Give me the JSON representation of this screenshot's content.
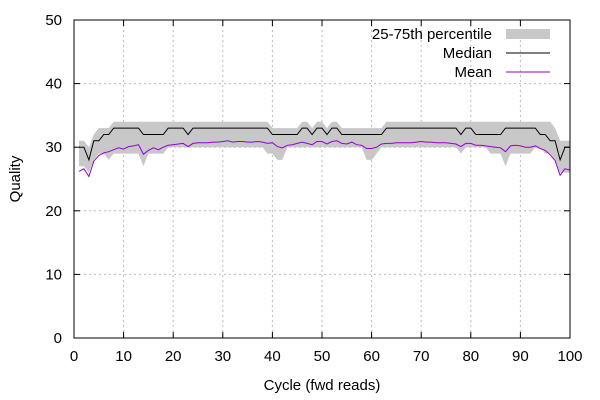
{
  "chart_data": {
    "type": "line",
    "xlabel": "Cycle (fwd reads)",
    "ylabel": "Quality",
    "xlim": [
      0,
      100
    ],
    "ylim": [
      0,
      50
    ],
    "xticks": [
      0,
      10,
      20,
      30,
      40,
      50,
      60,
      70,
      80,
      90,
      100
    ],
    "yticks": [
      0,
      10,
      20,
      30,
      40,
      50
    ],
    "grid": true,
    "legend_position": "top-right",
    "legend": {
      "band": "25-75th percentile",
      "median": "Median",
      "mean": "Mean"
    },
    "colors": {
      "band": "#c8c8c8",
      "median": "#000000",
      "mean": "#9400d3",
      "grid": "#bbbbbb"
    },
    "series": {
      "x": [
        1,
        2,
        3,
        4,
        5,
        6,
        7,
        8,
        9,
        10,
        11,
        12,
        13,
        14,
        15,
        16,
        17,
        18,
        19,
        20,
        21,
        22,
        23,
        24,
        25,
        26,
        27,
        28,
        29,
        30,
        31,
        32,
        33,
        34,
        35,
        36,
        37,
        38,
        39,
        40,
        41,
        42,
        43,
        44,
        45,
        46,
        47,
        48,
        49,
        50,
        51,
        52,
        53,
        54,
        55,
        56,
        57,
        58,
        59,
        60,
        61,
        62,
        63,
        64,
        65,
        66,
        67,
        68,
        69,
        70,
        71,
        72,
        73,
        74,
        75,
        76,
        77,
        78,
        79,
        80,
        81,
        82,
        83,
        84,
        85,
        86,
        87,
        88,
        89,
        90,
        91,
        92,
        93,
        94,
        95,
        96,
        97,
        98,
        99,
        100
      ],
      "median": [
        30,
        30,
        28,
        31,
        31,
        32,
        32,
        33,
        33,
        33,
        33,
        33,
        33,
        32,
        32,
        32,
        32,
        32,
        33,
        33,
        33,
        33,
        32,
        33,
        33,
        33,
        33,
        33,
        33,
        33,
        33,
        33,
        33,
        33,
        33,
        33,
        33,
        33,
        33,
        32,
        32,
        32,
        32,
        32,
        32,
        33,
        33,
        32,
        33,
        33,
        32,
        33,
        33,
        32,
        32,
        32,
        32,
        32,
        32,
        32,
        32,
        32,
        33,
        33,
        33,
        33,
        33,
        33,
        33,
        33,
        33,
        33,
        33,
        33,
        33,
        33,
        33,
        32,
        33,
        33,
        32,
        32,
        32,
        32,
        32,
        32,
        33,
        33,
        33,
        33,
        33,
        33,
        33,
        32,
        32,
        31,
        31,
        28,
        30,
        30
      ],
      "q1": [
        27,
        27,
        26,
        28,
        29,
        29,
        28,
        29,
        29,
        29,
        29,
        29,
        29,
        27,
        29,
        29,
        29,
        29,
        30,
        30,
        30,
        30,
        30,
        30,
        30,
        30,
        30,
        30,
        30,
        30,
        30,
        30,
        30,
        30,
        30,
        30,
        30,
        30,
        29,
        29,
        28,
        28,
        30,
        30,
        30,
        30,
        30,
        30,
        30,
        30,
        30,
        30,
        30,
        30,
        30,
        30,
        30,
        30,
        28,
        28,
        29,
        30,
        30,
        30,
        30,
        30,
        30,
        30,
        30,
        30,
        30,
        30,
        30,
        30,
        30,
        30,
        30,
        29,
        30,
        30,
        30,
        30,
        30,
        29,
        29,
        29,
        27,
        29,
        29,
        29,
        29,
        29,
        30,
        30,
        29,
        29,
        28,
        26,
        26,
        26
      ],
      "q3": [
        31,
        31,
        30,
        32,
        33,
        33,
        33,
        34,
        34,
        34,
        34,
        34,
        34,
        34,
        34,
        34,
        34,
        34,
        34,
        34,
        34,
        34,
        34,
        34,
        34,
        34,
        34,
        34,
        34,
        34,
        34,
        34,
        34,
        34,
        34,
        34,
        34,
        34,
        34,
        33,
        33,
        33,
        33,
        33,
        33,
        34,
        34,
        33,
        34,
        34,
        33,
        34,
        34,
        33,
        33,
        33,
        33,
        33,
        33,
        33,
        33,
        33,
        34,
        34,
        34,
        34,
        34,
        34,
        34,
        34,
        34,
        34,
        34,
        34,
        34,
        34,
        34,
        34,
        34,
        34,
        34,
        34,
        34,
        34,
        34,
        34,
        34,
        34,
        34,
        34,
        34,
        34,
        34,
        34,
        34,
        34,
        33,
        31,
        31,
        31
      ],
      "mean": [
        26.2,
        26.6,
        25.4,
        27.8,
        28.7,
        29.1,
        29.3,
        29.6,
        29.9,
        29.7,
        30.1,
        30.2,
        30.4,
        28.9,
        29.5,
        29.9,
        29.6,
        30.0,
        30.3,
        30.4,
        30.5,
        30.6,
        30.1,
        30.6,
        30.7,
        30.7,
        30.7,
        30.8,
        30.8,
        30.9,
        31.0,
        30.8,
        30.9,
        30.9,
        30.8,
        30.8,
        30.9,
        30.8,
        30.6,
        30.7,
        30.1,
        29.9,
        30.3,
        30.4,
        30.6,
        30.8,
        30.6,
        30.4,
        30.9,
        30.9,
        30.5,
        30.9,
        31.0,
        30.6,
        30.5,
        30.8,
        30.4,
        30.3,
        29.8,
        29.8,
        30.0,
        30.5,
        30.6,
        30.6,
        30.7,
        30.7,
        30.7,
        30.7,
        30.8,
        30.9,
        30.8,
        30.8,
        30.7,
        30.7,
        30.7,
        30.6,
        30.5,
        30.1,
        30.6,
        30.6,
        30.3,
        30.3,
        30.2,
        30.1,
        30.0,
        29.9,
        29.3,
        30.2,
        30.3,
        30.2,
        30.0,
        30.0,
        30.2,
        29.8,
        29.5,
        28.8,
        27.9,
        25.6,
        26.6,
        26.4
      ]
    }
  }
}
